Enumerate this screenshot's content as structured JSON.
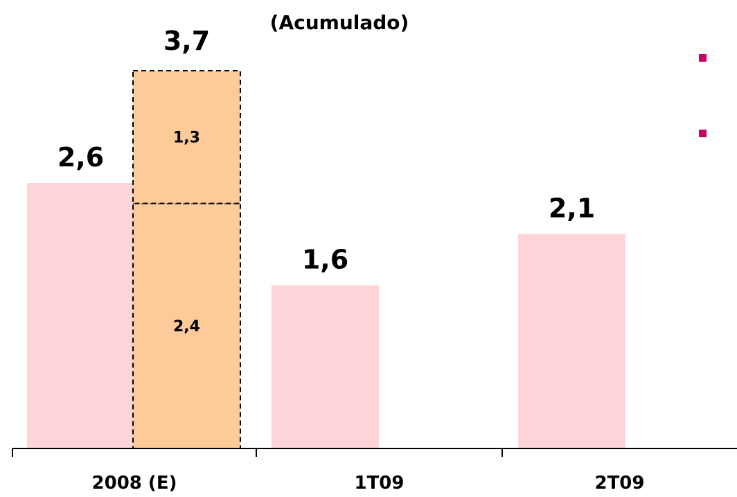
{
  "chart_data": {
    "type": "bar",
    "title": "(Acumulado)",
    "categories": [
      "2008 (E)",
      "1T09",
      "2T09"
    ],
    "series": [
      {
        "values": [
          2.6,
          1.6,
          2.1
        ],
        "labels": [
          "2,6",
          "1,6",
          "2,1"
        ]
      }
    ],
    "stacked_bar": {
      "category": "2008 (E)",
      "segments": [
        {
          "value": 2.4,
          "label": "2,4"
        },
        {
          "value": 1.3,
          "label": "1,3"
        }
      ],
      "total": 3.7,
      "total_label": "3,7"
    },
    "legend_markers": 2,
    "colors": {
      "bar": "#fdd5d8",
      "stacked": "#fccb99",
      "marker": "#cc0066",
      "axis": "#000000"
    },
    "ylim": [
      0,
      4.0
    ],
    "grid": false
  }
}
